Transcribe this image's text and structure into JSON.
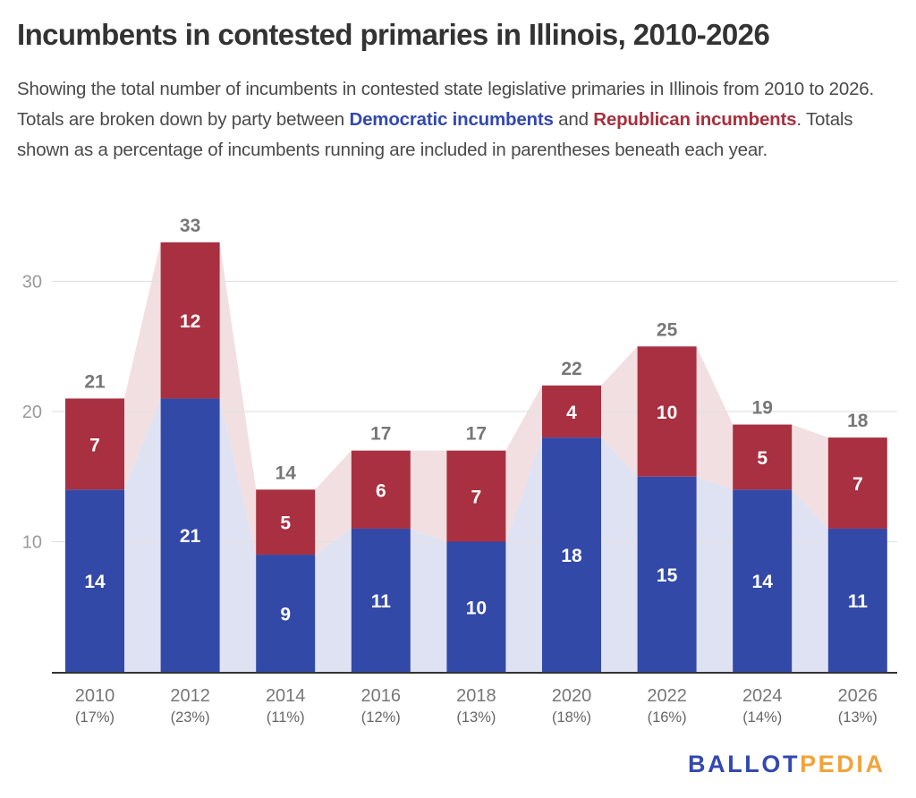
{
  "header": {
    "title": "Incumbents in contested primaries in Illinois, 2010-2026",
    "subtitle_part1": "Showing the total number of incumbents in contested state legislative primaries in Illinois from 2010 to 2026. Totals are broken down by party between ",
    "subtitle_dem": "Democratic incumbents",
    "subtitle_part2": " and ",
    "subtitle_rep": "Republican incumbents",
    "subtitle_part3": ". Totals shown as a percentage of incumbents running are included in parentheses beneath each year."
  },
  "colors": {
    "democratic": "#3349a8",
    "republican": "#a83040",
    "dem_band": "#dfe2f3",
    "rep_band": "#f2dfe1",
    "gridline": "#e2e2e2",
    "axis": "#333333",
    "tick_label": "#9a9a9a",
    "category_label": "#777777",
    "total_label": "#777777"
  },
  "chart_data": {
    "type": "bar",
    "stacked": true,
    "title": "Incumbents in contested primaries in Illinois, 2010-2026",
    "xlabel": "",
    "ylabel": "",
    "categories": [
      "2010",
      "2012",
      "2014",
      "2016",
      "2018",
      "2020",
      "2022",
      "2024",
      "2026"
    ],
    "category_sublabels": [
      "(17%)",
      "(23%)",
      "(11%)",
      "(12%)",
      "(13%)",
      "(18%)",
      "(16%)",
      "(14%)",
      "(13%)"
    ],
    "series": [
      {
        "name": "Democratic incumbents",
        "values": [
          14,
          21,
          9,
          11,
          10,
          18,
          15,
          14,
          11
        ]
      },
      {
        "name": "Republican incumbents",
        "values": [
          7,
          12,
          5,
          6,
          7,
          4,
          10,
          5,
          7
        ]
      }
    ],
    "totals": [
      21,
      33,
      14,
      17,
      17,
      22,
      25,
      19,
      18
    ],
    "ylim": [
      0,
      35
    ],
    "yticks": [
      10,
      20,
      30
    ],
    "grid": true,
    "legend": "inline in subtitle",
    "connector_bands": true
  },
  "branding": {
    "logo_part1": "BALLOT",
    "logo_part2": "PEDIA"
  }
}
